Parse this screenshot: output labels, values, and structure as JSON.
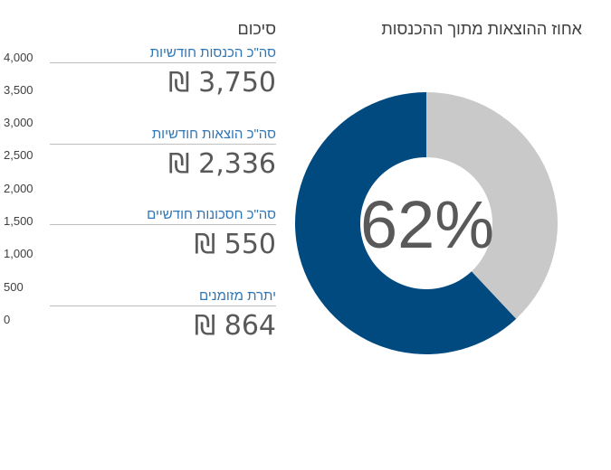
{
  "axis": {
    "ticks": [
      "4,000",
      "3,500",
      "3,000",
      "2,500",
      "2,000",
      "1,500",
      "1,000",
      "500",
      "0"
    ]
  },
  "summary": {
    "title": "סיכום",
    "items": [
      {
        "label": "סה\"כ הכנסות חודשיות",
        "value": "3,750 ₪"
      },
      {
        "label": "סה\"כ הוצאות חודשיות",
        "value": "2,336 ₪"
      },
      {
        "label": "סה\"כ חסכונות חודשיים",
        "value": "550 ₪"
      },
      {
        "label": "יתרת מזומנים",
        "value": "864 ₪"
      }
    ]
  },
  "chart_data": {
    "type": "pie",
    "title": "אחוז ההוצאות מתוך ההכנסות",
    "center_label": "62%",
    "slices": [
      {
        "label": "",
        "value": 62,
        "color": "#004a80"
      },
      {
        "label": "",
        "value": 38,
        "color": "#c9c9c9"
      }
    ]
  }
}
